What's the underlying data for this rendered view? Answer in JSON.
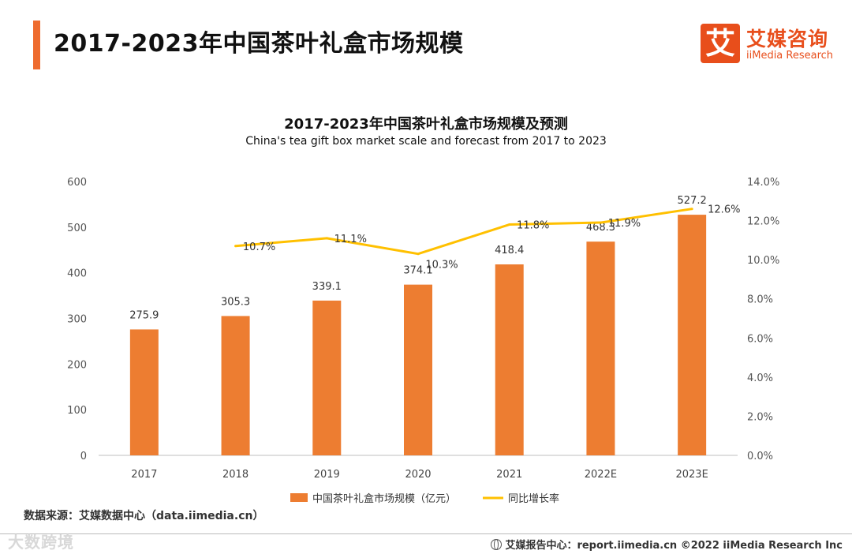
{
  "header": {
    "title": "2017-2023年中国茶叶礼盒市场规模",
    "logo_mark": "艾",
    "logo_cn": "艾媒咨询",
    "logo_en": "iiMedia Research"
  },
  "chart_data": {
    "type": "bar",
    "title": "2017-2023年中国茶叶礼盒市场规模及预测",
    "subtitle": "China's tea gift box market scale and forecast from 2017 to 2023",
    "categories": [
      "2017",
      "2018",
      "2019",
      "2020",
      "2021",
      "2022E",
      "2023E"
    ],
    "series": [
      {
        "name": "中国茶叶礼盒市场规模（亿元）",
        "type": "bar",
        "axis": "left",
        "color": "#ed7d31",
        "values": [
          275.9,
          305.3,
          339.1,
          374.1,
          418.4,
          468.3,
          527.2
        ],
        "labels": [
          "275.9",
          "305.3",
          "339.1",
          "374.1",
          "418.4",
          "468.3",
          "527.2"
        ]
      },
      {
        "name": "同比增长率",
        "type": "line",
        "axis": "right",
        "color": "#ffc000",
        "values": [
          null,
          10.7,
          11.1,
          10.3,
          11.8,
          11.9,
          12.6
        ],
        "labels": [
          null,
          "10.7%",
          "11.1%",
          "10.3%",
          "11.8%",
          "11.9%",
          "12.6%"
        ]
      }
    ],
    "ylim_left": [
      0,
      600
    ],
    "yticks_left": [
      "0",
      "100",
      "200",
      "300",
      "400",
      "500",
      "600"
    ],
    "ylim_right": [
      0,
      14
    ],
    "yticks_right": [
      "0.0%",
      "2.0%",
      "4.0%",
      "6.0%",
      "8.0%",
      "10.0%",
      "12.0%",
      "14.0%"
    ],
    "grid": false,
    "legend_position": "bottom"
  },
  "footer": {
    "source": "数据来源：艾媒数据中心（data.iimedia.cn）",
    "report": "艾媒报告中心：report.iimedia.cn  ©2022  iiMedia Research  Inc",
    "watermark": "大数跨境"
  }
}
